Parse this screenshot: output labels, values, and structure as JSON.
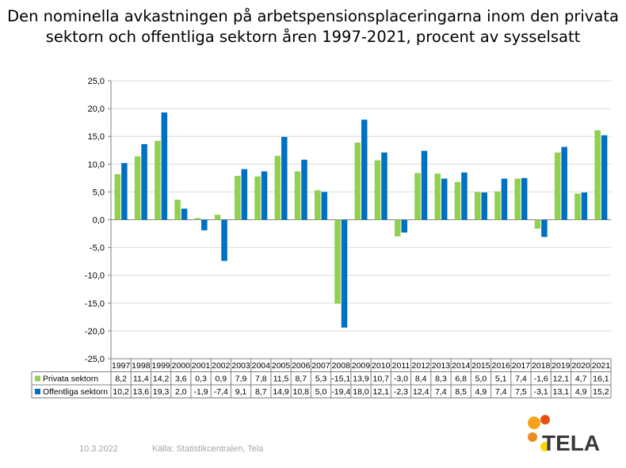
{
  "title_line1": "Den nominella avkastningen på arbetspensionsplaceringarna inom den privata",
  "title_line2": "sektorn och offentliga sektorn åren 1997-2021, procent av sysselsatt",
  "footer": {
    "date": "10.3.2022",
    "source": "Källa: Statistikcentralen, Tela"
  },
  "logo": {
    "text": "TELA"
  },
  "colors": {
    "privat": "#92d050",
    "offentlig": "#0070c0"
  },
  "chart_data": {
    "type": "bar",
    "title": "Den nominella avkastningen på arbetspensionsplaceringarna inom den privata sektorn och offentliga sektorn åren 1997-2021, procent av sysselsatt",
    "categories": [
      "1997",
      "1998",
      "1999",
      "2000",
      "2001",
      "2002",
      "2003",
      "2004",
      "2005",
      "2006",
      "2007",
      "2008",
      "2009",
      "2010",
      "2011",
      "2012",
      "2013",
      "2014",
      "2015",
      "2016",
      "2017",
      "2018",
      "2019",
      "2020",
      "2021"
    ],
    "series": [
      {
        "name": "Privata sektorn",
        "color": "#92d050",
        "values": [
          8.2,
          11.4,
          14.2,
          3.6,
          0.3,
          0.9,
          7.9,
          7.8,
          11.5,
          8.7,
          5.3,
          -15.1,
          13.9,
          10.7,
          -3.0,
          8.4,
          8.3,
          6.8,
          5.0,
          5.1,
          7.4,
          -1.6,
          12.1,
          4.7,
          16.1
        ],
        "labels": [
          "8,2",
          "11,4",
          "14,2",
          "3,6",
          "0,3",
          "0,9",
          "7,9",
          "7,8",
          "11,5",
          "8,7",
          "5,3",
          "-15,1",
          "13,9",
          "10,7",
          "-3,0",
          "8,4",
          "8,3",
          "6,8",
          "5,0",
          "5,1",
          "7,4",
          "-1,6",
          "12,1",
          "4,7",
          "16,1"
        ]
      },
      {
        "name": "Offentliga sektorn",
        "color": "#0070c0",
        "values": [
          10.2,
          13.6,
          19.3,
          2.0,
          -1.9,
          -7.4,
          9.1,
          8.7,
          14.9,
          10.8,
          5.0,
          -19.4,
          18.0,
          12.1,
          -2.3,
          12.4,
          7.4,
          8.5,
          4.9,
          7.4,
          7.5,
          -3.1,
          13.1,
          4.9,
          15.2
        ],
        "labels": [
          "10,2",
          "13,6",
          "19,3",
          "2,0",
          "-1,9",
          "-7,4",
          "9,1",
          "8,7",
          "14,9",
          "10,8",
          "5,0",
          "-19,4",
          "18,0",
          "12,1",
          "-2,3",
          "12,4",
          "7,4",
          "8,5",
          "4,9",
          "7,4",
          "7,5",
          "-3,1",
          "13,1",
          "4,9",
          "15,2"
        ]
      }
    ],
    "ylim": [
      -25,
      25
    ],
    "yticks": [
      "25,0",
      "20,0",
      "15,0",
      "10,0",
      "5,0",
      "0,0",
      "-5,0",
      "-10,0",
      "-15,0",
      "-20,0",
      "-25,0"
    ],
    "grid": true,
    "legend": "data table below chart"
  }
}
